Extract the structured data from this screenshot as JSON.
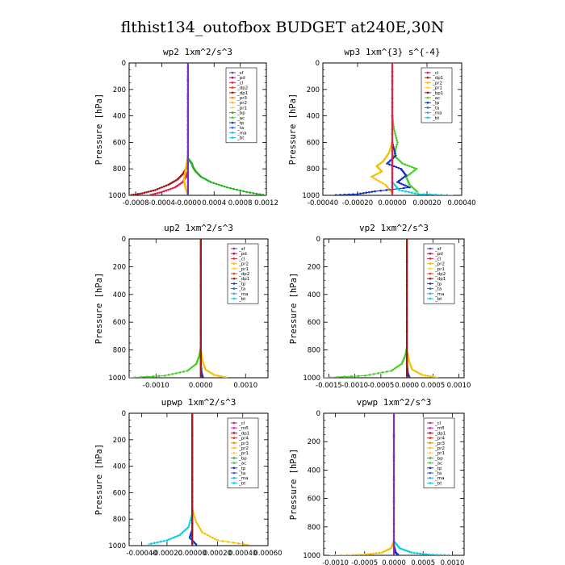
{
  "title": "flthist134_outofbox  BUDGET at240E,30N",
  "colors": {
    "sf": "#7b2fbe",
    "pd": "#b01050",
    "cl": "#e0204a",
    "dp2": "#e84020",
    "dp1": "#a01818",
    "pr3": "#f08020",
    "pr2": "#f5c000",
    "pr1": "#ffd040",
    "bp": "#20b020",
    "ac": "#40d020",
    "tp": "#1030c0",
    "ta": "#2060ff",
    "ma": "#40a0ff",
    "bt": "#00d0e0",
    "mfl": "#c030c0",
    "pr4": "#d03030"
  },
  "chart_data": [
    {
      "type": "line",
      "title": "wp2   1xm^2/s^3",
      "ylabel": "Pressure [hPa]",
      "xlim": [
        -0.0009,
        0.0012
      ],
      "ylim": [
        1000,
        0
      ],
      "xticks": [
        -0.0008,
        -0.0004,
        0.0,
        0.0004,
        0.0008,
        0.0012
      ],
      "xticklabels": [
        "-0.0008",
        "-0.0004",
        "-0.0000",
        "0.0004",
        "0.0008",
        "0.0012"
      ],
      "yticks": [
        0,
        200,
        400,
        600,
        800,
        1000
      ],
      "legend": [
        "_sf",
        "_pd",
        "_cl",
        "_dp2",
        "_dp1",
        "_pr3",
        "_pr2",
        "_pr1",
        "_bp",
        "_ac",
        "_tp",
        "_ta",
        "_ma",
        "_bt"
      ],
      "legend_position": "top-right",
      "series": [
        {
          "name": "_bp",
          "color": "bp",
          "x": [
            0,
            0,
            3e-05,
            6e-05,
            8e-05,
            0.00012,
            0.0002,
            0.00035,
            0.0006,
            0.0009,
            0.0012
          ],
          "y": [
            0,
            720,
            740,
            760,
            790,
            820,
            860,
            900,
            940,
            975,
            1000
          ]
        },
        {
          "name": "_dp1",
          "color": "dp1",
          "x": [
            0,
            0,
            -3e-05,
            -8e-05,
            -0.00016,
            -0.0003,
            -0.0005,
            -0.0007,
            -0.0009
          ],
          "y": [
            0,
            760,
            800,
            840,
            880,
            920,
            960,
            985,
            1000
          ]
        },
        {
          "name": "_cl",
          "color": "cl",
          "x": [
            0,
            0,
            -3e-05,
            -8e-05,
            -0.0002,
            -0.0004,
            -0.0006
          ],
          "y": [
            0,
            820,
            860,
            900,
            940,
            975,
            1000
          ]
        },
        {
          "name": "_pr2",
          "color": "pr2",
          "x": [
            0,
            0,
            -2e-05,
            -4e-05,
            -6e-05,
            -4e-05,
            0
          ],
          "y": [
            0,
            700,
            760,
            820,
            880,
            940,
            1000
          ]
        },
        {
          "name": "_sf",
          "color": "sf",
          "x": [
            0,
            0,
            0,
            0,
            0,
            0
          ],
          "y": [
            0,
            200,
            400,
            600,
            800,
            1000
          ]
        }
      ]
    },
    {
      "type": "line",
      "title": "wp3   1xm^{3} s^{-4}",
      "ylabel": "Pressure [hPa]",
      "xlim": [
        -0.0004,
        0.0004
      ],
      "ylim": [
        1000,
        0
      ],
      "xticks": [
        -0.0004,
        -0.0002,
        0.0,
        0.0002,
        0.0004
      ],
      "xticklabels": [
        "-0.00040",
        "-0.00020",
        "0.00000",
        "0.00020",
        "0.00040"
      ],
      "yticks": [
        0,
        200,
        400,
        600,
        800,
        1000
      ],
      "legend": [
        "_cl",
        "_dp1",
        "_pr2",
        "_pr1",
        "_bp1",
        "_ac",
        "_tp",
        "_ta",
        "_ma",
        "_bt"
      ],
      "legend_position": "top-right",
      "series": [
        {
          "name": "_ac",
          "color": "ac",
          "x": [
            0,
            0,
            1e-05,
            3e-05,
            1e-05,
            6e-05,
            0.00014,
            8e-05,
            0.0001,
            0.00015
          ],
          "y": [
            0,
            400,
            500,
            600,
            700,
            760,
            800,
            860,
            920,
            980
          ]
        },
        {
          "name": "_pr2",
          "color": "pr2",
          "x": [
            0,
            0,
            -2e-05,
            -5e-05,
            -9e-05,
            -6e-05,
            -0.00012,
            -4e-05,
            0
          ],
          "y": [
            0,
            600,
            680,
            740,
            780,
            820,
            860,
            920,
            980
          ]
        },
        {
          "name": "_tp",
          "color": "tp",
          "x": [
            0,
            0,
            2e-05,
            -3e-05,
            5e-05,
            8e-05,
            3e-05,
            0.0001,
            -0.0001,
            -0.0002,
            -0.00035
          ],
          "y": [
            0,
            600,
            700,
            760,
            800,
            850,
            900,
            940,
            970,
            990,
            1000
          ]
        },
        {
          "name": "_bt",
          "color": "bt",
          "x": [
            0,
            0,
            4e-05,
            0.00015,
            0.00035
          ],
          "y": [
            0,
            900,
            960,
            990,
            1000
          ]
        },
        {
          "name": "_cl",
          "color": "cl",
          "x": [
            0,
            0,
            0,
            0
          ],
          "y": [
            0,
            400,
            800,
            1000
          ]
        }
      ]
    },
    {
      "type": "line",
      "title": "up2   1xm^2/s^3",
      "ylabel": "Pressure [hPa]",
      "xlim": [
        -0.0016,
        0.0015
      ],
      "ylim": [
        1000,
        0
      ],
      "xticks": [
        -0.001,
        0.0,
        0.001
      ],
      "xticklabels": [
        "-0.0010",
        "0.0000",
        "0.0010"
      ],
      "yticks": [
        0,
        200,
        400,
        600,
        800,
        1000
      ],
      "legend": [
        "_sf",
        "_pd",
        "_cl",
        "_pr2",
        "_pr1",
        "_dp2",
        "_dp1",
        "_tp",
        "_ta",
        "_ma",
        "_bt"
      ],
      "legend_position": "top-right",
      "series": [
        {
          "name": "_dp2",
          "color": "ac",
          "x": [
            0,
            0,
            -3e-05,
            -0.0001,
            -0.0003,
            -0.0008,
            -0.0016
          ],
          "y": [
            0,
            780,
            840,
            900,
            950,
            985,
            1000
          ]
        },
        {
          "name": "_pr1",
          "color": "pr2",
          "x": [
            0,
            0,
            4e-05,
            0.0001,
            0.0003,
            0.0006
          ],
          "y": [
            0,
            800,
            880,
            940,
            980,
            1000
          ]
        },
        {
          "name": "_tp",
          "color": "tp",
          "x": [
            0,
            0,
            2e-05,
            5e-05
          ],
          "y": [
            0,
            900,
            970,
            1000
          ]
        },
        {
          "name": "_sf",
          "color": "sf",
          "x": [
            0,
            0
          ],
          "y": [
            0,
            1000
          ]
        },
        {
          "name": "_cl",
          "color": "dp1",
          "x": [
            0,
            0
          ],
          "y": [
            0,
            1000
          ]
        }
      ]
    },
    {
      "type": "line",
      "title": "vp2   1xm^2/s^3",
      "ylabel": "Pressure [hPa]",
      "xlim": [
        -0.0016,
        0.0011
      ],
      "ylim": [
        1000,
        0
      ],
      "xticks": [
        -0.0015,
        -0.001,
        -0.0005,
        0.0,
        0.0005,
        0.001
      ],
      "xticklabels": [
        "-0.0015",
        "-0.0010",
        "-0.0005",
        "0.0000",
        "0.0005",
        "0.0010"
      ],
      "yticks": [
        0,
        200,
        400,
        600,
        800,
        1000
      ],
      "legend": [
        "_sf",
        "_pd",
        "_cl",
        "_pr2",
        "_pr1",
        "_dp2",
        "_dp1",
        "_tp",
        "_ta",
        "_ma",
        "_bt"
      ],
      "legend_position": "top-right",
      "series": [
        {
          "name": "_dp2",
          "color": "ac",
          "x": [
            0,
            0,
            -3e-05,
            -0.0001,
            -0.0003,
            -0.0008,
            -0.0016
          ],
          "y": [
            0,
            780,
            840,
            900,
            950,
            985,
            1000
          ]
        },
        {
          "name": "_pr1",
          "color": "pr2",
          "x": [
            0,
            0,
            4e-05,
            0.0001,
            0.0003,
            0.0006
          ],
          "y": [
            0,
            800,
            880,
            940,
            980,
            1000
          ]
        },
        {
          "name": "_tp",
          "color": "tp",
          "x": [
            0,
            0,
            2e-05,
            5e-05
          ],
          "y": [
            0,
            900,
            970,
            1000
          ]
        },
        {
          "name": "_sf",
          "color": "sf",
          "x": [
            0,
            0
          ],
          "y": [
            0,
            1000
          ]
        },
        {
          "name": "_cl",
          "color": "dp1",
          "x": [
            0,
            0
          ],
          "y": [
            0,
            1000
          ]
        }
      ]
    },
    {
      "type": "line",
      "title": "upwp   1xm^2/s^3",
      "ylabel": "Pressure [hPa]",
      "xlim": [
        -0.0005,
        0.0006
      ],
      "ylim": [
        1000,
        0
      ],
      "xticks": [
        -0.0004,
        -0.0002,
        0.0,
        0.0002,
        0.0004,
        0.0006
      ],
      "xticklabels": [
        "-0.00040",
        "-0.00020",
        "0.00000",
        "0.00020",
        "0.00040",
        "0.00060"
      ],
      "yticks": [
        0,
        200,
        400,
        600,
        800,
        1000
      ],
      "legend": [
        "_cl",
        "_mfl",
        "_dp1",
        "_pr4",
        "_pr3",
        "_pr2",
        "_pr1",
        "_bp",
        "_ac",
        "_tp",
        "_ta",
        "_ma",
        "_bt"
      ],
      "legend_position": "top-right",
      "series": [
        {
          "name": "_pr1",
          "color": "pr2",
          "x": [
            0,
            0,
            3e-05,
            8e-05,
            0.0002,
            0.00045
          ],
          "y": [
            0,
            720,
            820,
            900,
            960,
            995
          ]
        },
        {
          "name": "_ma",
          "color": "bt",
          "x": [
            0,
            0,
            -3e-05,
            -0.0001,
            -0.0002,
            -0.00035
          ],
          "y": [
            0,
            760,
            860,
            920,
            960,
            990
          ]
        },
        {
          "name": "_tp",
          "color": "tp",
          "x": [
            0,
            0,
            -2e-05,
            4e-05
          ],
          "y": [
            0,
            880,
            940,
            1000
          ]
        },
        {
          "name": "_cl",
          "color": "sf",
          "x": [
            0,
            0
          ],
          "y": [
            0,
            1000
          ]
        },
        {
          "name": "_dp1",
          "color": "dp1",
          "x": [
            0,
            0
          ],
          "y": [
            0,
            1000
          ]
        }
      ]
    },
    {
      "type": "line",
      "title": "vpwp   1xm^2/s^3",
      "ylabel": "Pressure [hPa]",
      "xlim": [
        -0.0012,
        0.0012
      ],
      "ylim": [
        1000,
        0
      ],
      "xticks": [
        -0.001,
        -0.0005,
        0.0,
        0.0005,
        0.001
      ],
      "xticklabels": [
        "-0.0010",
        "-0.0005",
        "0.0000",
        "0.0005",
        "0.0010"
      ],
      "yticks": [
        0,
        200,
        400,
        600,
        800,
        1000
      ],
      "legend": [
        "_cl",
        "_mfl",
        "_dp1",
        "_pr4",
        "_pr3",
        "_pr2",
        "_pr1",
        "_bp",
        "_ac",
        "_tp",
        "_ta",
        "_ma",
        "_bt"
      ],
      "legend_position": "top-right",
      "series": [
        {
          "name": "_pr1",
          "color": "pr2",
          "x": [
            0,
            0,
            -5e-05,
            -0.0002,
            -0.0005,
            -0.0011
          ],
          "y": [
            0,
            900,
            950,
            980,
            995,
            1000
          ]
        },
        {
          "name": "_bt",
          "color": "bt",
          "x": [
            0,
            0,
            0.0001,
            0.0003,
            0.0006,
            0.001
          ],
          "y": [
            0,
            900,
            950,
            980,
            995,
            1000
          ]
        },
        {
          "name": "_tp",
          "color": "tp",
          "x": [
            0,
            0,
            3e-05,
            8e-05
          ],
          "y": [
            0,
            930,
            980,
            1000
          ]
        },
        {
          "name": "_cl",
          "color": "sf",
          "x": [
            0,
            0
          ],
          "y": [
            0,
            1000
          ]
        }
      ]
    }
  ]
}
